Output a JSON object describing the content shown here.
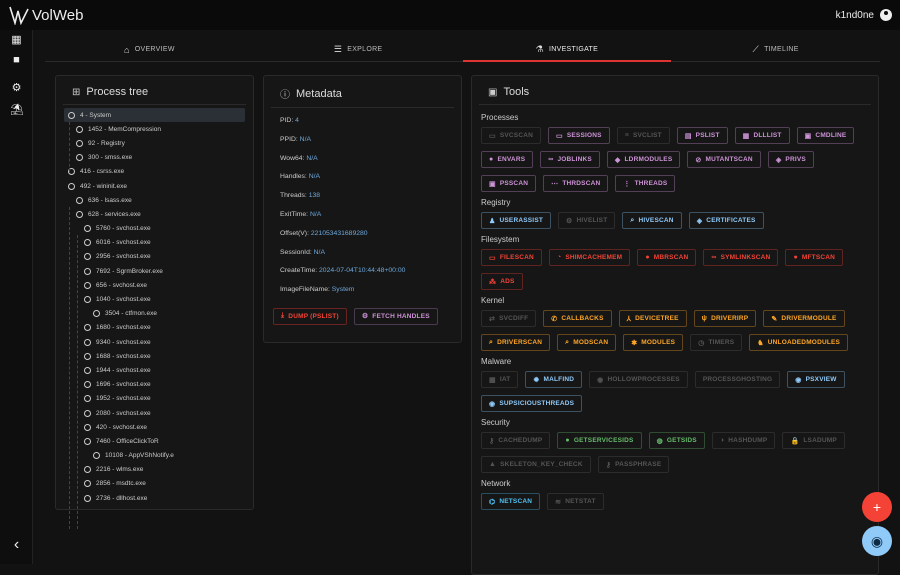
{
  "app": {
    "name": "VolWeb",
    "user": "k1nd0ne"
  },
  "sidebar": [
    {
      "icon": "dashboard-icon",
      "glyph": "▦"
    },
    {
      "icon": "briefcase-icon",
      "glyph": "■"
    },
    {
      "icon": "settings-icon",
      "glyph": "⚙"
    },
    {
      "icon": "table-icon",
      "glyph": "⛱"
    },
    {
      "icon": "collapse-chevron-icon",
      "glyph": "‹"
    }
  ],
  "tabs": [
    {
      "label": "OVERVIEW",
      "icon": "home-icon",
      "glyph": "⌂",
      "active": false
    },
    {
      "label": "EXPLORE",
      "icon": "list-icon",
      "glyph": "☰",
      "active": false
    },
    {
      "label": "INVESTIGATE",
      "icon": "microscope-icon",
      "glyph": "⚗",
      "active": true
    },
    {
      "label": "TIMELINE",
      "icon": "timeline-icon",
      "glyph": "⟋",
      "active": false
    }
  ],
  "process_tree": {
    "title": "Process tree",
    "nodes": [
      {
        "label": "4 - System",
        "level": 0,
        "selected": true
      },
      {
        "label": "1452 - MemCompression",
        "level": 1
      },
      {
        "label": "92 - Registry",
        "level": 1
      },
      {
        "label": "300 - smss.exe",
        "level": 1
      },
      {
        "label": "416 - csrss.exe",
        "level": 0
      },
      {
        "label": "492 - wininit.exe",
        "level": 0
      },
      {
        "label": "636 - lsass.exe",
        "level": 1
      },
      {
        "label": "628 - services.exe",
        "level": 1
      },
      {
        "label": "5760 - svchost.exe",
        "level": 2
      },
      {
        "label": "6016 - svchost.exe",
        "level": 2
      },
      {
        "label": "2956 - svchost.exe",
        "level": 2
      },
      {
        "label": "7692 - SgrmBroker.exe",
        "level": 2
      },
      {
        "label": "656 - svchost.exe",
        "level": 2
      },
      {
        "label": "1040 - svchost.exe",
        "level": 2
      },
      {
        "label": "3504 - ctfmon.exe",
        "level": 3
      },
      {
        "label": "1680 - svchost.exe",
        "level": 2
      },
      {
        "label": "9340 - svchost.exe",
        "level": 2
      },
      {
        "label": "1688 - svchost.exe",
        "level": 2
      },
      {
        "label": "1944 - svchost.exe",
        "level": 2
      },
      {
        "label": "1696 - svchost.exe",
        "level": 2
      },
      {
        "label": "1952 - svchost.exe",
        "level": 2
      },
      {
        "label": "2080 - svchost.exe",
        "level": 2
      },
      {
        "label": "420 - svchost.exe",
        "level": 2
      },
      {
        "label": "7460 - OfficeClickToR",
        "level": 2
      },
      {
        "label": "10108 - AppVShNotify.e",
        "level": 3
      },
      {
        "label": "2216 - wlms.exe",
        "level": 2
      },
      {
        "label": "2856 - msdtc.exe",
        "level": 2
      },
      {
        "label": "2736 - dllhost.exe",
        "level": 2
      }
    ]
  },
  "metadata": {
    "title": "Metadata",
    "fields": [
      {
        "key": "PID:",
        "value": "4"
      },
      {
        "key": "PPID:",
        "value": "N/A"
      },
      {
        "key": "Wow64:",
        "value": "N/A"
      },
      {
        "key": "Handles:",
        "value": "N/A"
      },
      {
        "key": "Threads:",
        "value": "138"
      },
      {
        "key": "ExitTime:",
        "value": "N/A"
      },
      {
        "key": "Offset(V):",
        "value": "221053431689280"
      },
      {
        "key": "SessionId:",
        "value": "N/A"
      },
      {
        "key": "CreateTime:",
        "value": "2024-07-04T10:44:48+00:00"
      },
      {
        "key": "ImageFileName:",
        "value": "System"
      }
    ],
    "dump_label": "DUMP (PSLIST)",
    "fetch_label": "FETCH HANDLES"
  },
  "tools": {
    "title": "Tools",
    "colors": {
      "purple": "#ce93d8",
      "blue": "#90caf9",
      "red": "#f44336",
      "orange": "#ffa726",
      "green": "#66bb6a",
      "cyan": "#4fc3f7",
      "disabled": "#555555"
    },
    "sections": [
      {
        "title": "Processes",
        "color": "purple",
        "buttons": [
          {
            "label": "SVCSCAN",
            "g": "▭",
            "enabled": false
          },
          {
            "label": "SESSIONS",
            "g": "▭",
            "enabled": true
          },
          {
            "label": "SVCLIST",
            "g": "≡",
            "enabled": false
          },
          {
            "label": "PSLIST",
            "g": "▤",
            "enabled": true
          },
          {
            "label": "DLLLIST",
            "g": "▦",
            "enabled": true
          },
          {
            "label": "CMDLINE",
            "g": "▣",
            "enabled": true
          },
          {
            "label": "ENVARS",
            "g": "●",
            "enabled": true
          },
          {
            "label": "JOBLINKS",
            "g": "∞",
            "enabled": true
          },
          {
            "label": "LDRMODULES",
            "g": "◆",
            "enabled": true
          },
          {
            "label": "MUTANTSCAN",
            "g": "⊘",
            "enabled": true
          },
          {
            "label": "PRIVS",
            "g": "◈",
            "enabled": true
          },
          {
            "label": "PSSCAN",
            "g": "▣",
            "enabled": true
          },
          {
            "label": "THRDSCAN",
            "g": "⋯",
            "enabled": true
          },
          {
            "label": "THREADS",
            "g": "⋮",
            "enabled": true
          }
        ]
      },
      {
        "title": "Registry",
        "color": "blue",
        "buttons": [
          {
            "label": "USERASSIST",
            "g": "♟",
            "enabled": true
          },
          {
            "label": "HIVELIST",
            "g": "⚙",
            "enabled": false
          },
          {
            "label": "HIVESCAN",
            "g": "⌕",
            "enabled": true
          },
          {
            "label": "CERTIFICATES",
            "g": "◈",
            "enabled": true
          }
        ]
      },
      {
        "title": "Filesystem",
        "color": "red",
        "buttons": [
          {
            "label": "FILESCAN",
            "g": "▭",
            "enabled": true
          },
          {
            "label": "SHIMCACHEMEM",
            "g": "◔",
            "enabled": true
          },
          {
            "label": "MBRSCAN",
            "g": "●",
            "enabled": true
          },
          {
            "label": "SYMLINKSCAN",
            "g": "∞",
            "enabled": true
          },
          {
            "label": "MFTSCAN",
            "g": "●",
            "enabled": true
          },
          {
            "label": "ADS",
            "g": "⁂",
            "enabled": true
          }
        ]
      },
      {
        "title": "Kernel",
        "color": "orange",
        "buttons": [
          {
            "label": "SVCDIFF",
            "g": "⇄",
            "enabled": false
          },
          {
            "label": "CALLBACKS",
            "g": "✆",
            "enabled": true
          },
          {
            "label": "DEVICETREE",
            "g": "⅄",
            "enabled": true
          },
          {
            "label": "DRIVERIRP",
            "g": "ψ",
            "enabled": true
          },
          {
            "label": "DRIVERMODULE",
            "g": "✎",
            "enabled": true
          },
          {
            "label": "DRIVERSCAN",
            "g": "⌕",
            "enabled": true
          },
          {
            "label": "MODSCAN",
            "g": "⌕",
            "enabled": true
          },
          {
            "label": "MODULES",
            "g": "✱",
            "enabled": true
          },
          {
            "label": "TIMERS",
            "g": "◷",
            "enabled": false
          },
          {
            "label": "UNLOADEDMODULES",
            "g": "♞",
            "enabled": true
          }
        ]
      },
      {
        "title": "Malware",
        "color": "blue",
        "buttons": [
          {
            "label": "IAT",
            "g": "▦",
            "enabled": false
          },
          {
            "label": "MALFIND",
            "g": "✹",
            "enabled": true
          },
          {
            "label": "HOLLOWPROCESSES",
            "g": "◉",
            "enabled": false
          },
          {
            "label": "PROCESSGHOSTING",
            "g": "",
            "enabled": false
          },
          {
            "label": "PSXVIEW",
            "g": "◉",
            "enabled": true
          },
          {
            "label": "SUPSICIOUSTHREADS",
            "g": "◉",
            "enabled": true
          }
        ]
      },
      {
        "title": "Security",
        "color": "green",
        "buttons": [
          {
            "label": "CACHEDUMP",
            "g": "⚷",
            "enabled": false
          },
          {
            "label": "GETSERVICESIDS",
            "g": "●",
            "enabled": true
          },
          {
            "label": "GETSIDS",
            "g": "◍",
            "enabled": true
          },
          {
            "label": "HASHDUMP",
            "g": "◑",
            "enabled": false
          },
          {
            "label": "LSADUMP",
            "g": "🔒",
            "enabled": false
          },
          {
            "label": "SKELETON_KEY_CHECK",
            "g": "▲",
            "enabled": false
          },
          {
            "label": "PASSPHRASE",
            "g": "⚷",
            "enabled": false
          }
        ]
      },
      {
        "title": "Network",
        "color": "cyan",
        "buttons": [
          {
            "label": "NETSCAN",
            "g": "⌬",
            "enabled": true
          },
          {
            "label": "NETSTAT",
            "g": "≋",
            "enabled": false
          }
        ]
      }
    ]
  },
  "fabs": [
    {
      "icon": "plus-icon",
      "glyph": "+",
      "color": "#f44336"
    },
    {
      "icon": "eye-icon",
      "glyph": "◉",
      "color": "#90caf9"
    }
  ]
}
